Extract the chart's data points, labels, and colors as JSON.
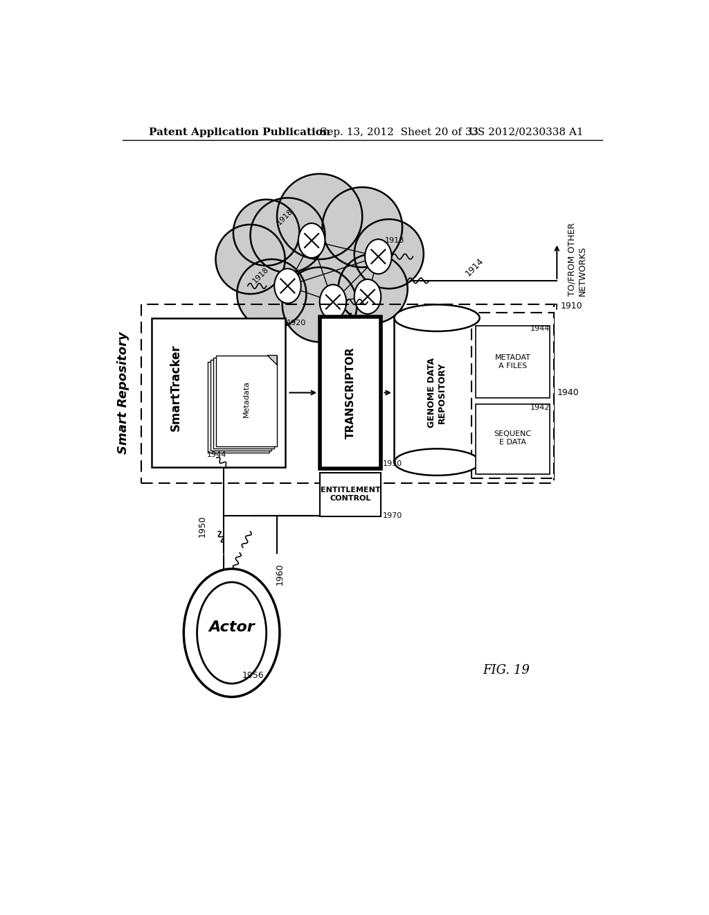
{
  "bg_color": "#ffffff",
  "header_text": "Patent Application Publication",
  "header_date": "Sep. 13, 2012  Sheet 20 of 33",
  "header_patent": "US 2012/0230338 A1",
  "fig_label": "FIG. 19",
  "smart_repo_label": "Smart Repository",
  "cloud_label": "1914",
  "network_label": "TO/FROM OTHER\nNETWORKS",
  "smarttracker_label": "SmartTracker",
  "smarttracker_id": "1920",
  "transcriptor_label": "TRANSCRIPTOR",
  "transcriptor_id": "1930",
  "entitlement_label": "ENTITLEMENT\nCONTROL",
  "entitlement_id": "1970",
  "genome_label": "GENOME DATA\nREPOSITORY",
  "genome_box_id": "1940",
  "metadata_files_label": "METADAT\nA FILES",
  "metadata_files_id": "1944",
  "sequence_data_label": "SEQUENC\nE DATA",
  "sequence_data_id": "1942",
  "actor_label": "Actor",
  "actor_id": "1956",
  "node_id": "1918",
  "outer_box_id": "1910",
  "label_1950": "1950",
  "label_1960": "1960",
  "smarttracker_doc_id": "1944",
  "cloud_color": "#cccccc",
  "white": "#ffffff",
  "black": "#000000"
}
